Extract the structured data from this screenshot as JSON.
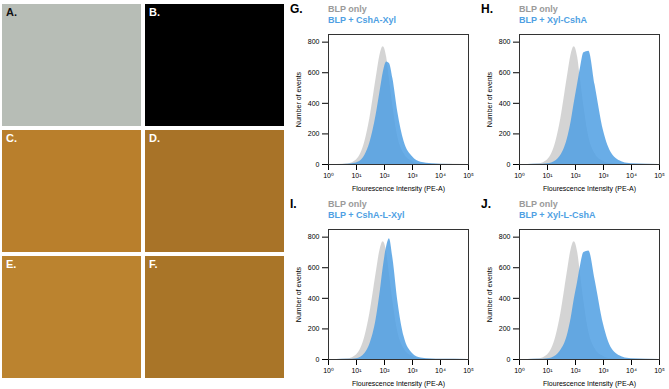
{
  "image_panels": [
    {
      "label": "A.",
      "color": "#b7bdb6"
    },
    {
      "label": "B.",
      "color": "#000000"
    },
    {
      "label": "C.",
      "color": "#b97f2c"
    },
    {
      "label": "D.",
      "color": "#a87328"
    },
    {
      "label": "E.",
      "color": "#bb832f"
    },
    {
      "label": "F.",
      "color": "#a97528"
    }
  ],
  "chart_data": [
    {
      "type": "area",
      "title": "G.",
      "x_label": "Flourescence Intensity (PE-A)",
      "y_label": "Number of events",
      "x": [
        2,
        5,
        10,
        20,
        30,
        50,
        70,
        90,
        120,
        150,
        200,
        300,
        500,
        1000,
        2000,
        5000,
        10000,
        100000
      ],
      "series": [
        {
          "name": "BLP only",
          "color": "#cfcfcf",
          "values": [
            0,
            5,
            30,
            150,
            300,
            560,
            720,
            770,
            700,
            560,
            380,
            180,
            70,
            20,
            5,
            2,
            1,
            0
          ]
        },
        {
          "name": "BLP + CshA-Xyl",
          "color": "#4f9fe3",
          "values": [
            0,
            2,
            10,
            60,
            140,
            320,
            480,
            600,
            670,
            660,
            560,
            340,
            150,
            50,
            15,
            5,
            2,
            0
          ]
        }
      ],
      "xlim": [
        1,
        100000
      ],
      "xticks": [
        {
          "value": 1,
          "label": "10⁰"
        },
        {
          "value": 10,
          "label": "10¹"
        },
        {
          "value": 100,
          "label": "10²"
        },
        {
          "value": 1000,
          "label": "10³"
        },
        {
          "value": 10000,
          "label": "10⁴"
        },
        {
          "value": 100000,
          "label": "10⁵"
        }
      ],
      "ylim": [
        0,
        850
      ],
      "yticks": [
        0,
        200,
        400,
        600,
        800
      ],
      "log": "x",
      "grid": false,
      "legend": "top-left"
    },
    {
      "type": "area",
      "title": "H.",
      "x_label": "Flourescence Intensity (PE-A)",
      "y_label": "Number of events",
      "x": [
        2,
        5,
        10,
        20,
        30,
        50,
        70,
        90,
        120,
        150,
        200,
        300,
        500,
        1000,
        2000,
        5000,
        10000,
        100000
      ],
      "series": [
        {
          "name": "BLP only",
          "color": "#cfcfcf",
          "values": [
            0,
            5,
            30,
            150,
            300,
            560,
            720,
            770,
            700,
            560,
            380,
            180,
            70,
            20,
            5,
            2,
            1,
            0
          ]
        },
        {
          "name": "BLP + Xyl-CshA",
          "color": "#4f9fe3",
          "values": [
            0,
            1,
            5,
            25,
            60,
            160,
            280,
            400,
            530,
            630,
            730,
            740,
            520,
            220,
            70,
            15,
            5,
            0
          ]
        }
      ],
      "xlim": [
        1,
        100000
      ],
      "xticks": [
        {
          "value": 1,
          "label": "10⁰"
        },
        {
          "value": 10,
          "label": "10¹"
        },
        {
          "value": 100,
          "label": "10²"
        },
        {
          "value": 1000,
          "label": "10³"
        },
        {
          "value": 10000,
          "label": "10⁴"
        },
        {
          "value": 100000,
          "label": "10⁵"
        }
      ],
      "ylim": [
        0,
        850
      ],
      "yticks": [
        0,
        200,
        400,
        600,
        800
      ],
      "log": "x",
      "grid": false,
      "legend": "top-left"
    },
    {
      "type": "area",
      "title": "I.",
      "x_label": "Flourescence Intensity (PE-A)",
      "y_label": "Number of events",
      "x": [
        2,
        5,
        10,
        20,
        30,
        50,
        70,
        90,
        120,
        150,
        200,
        300,
        500,
        1000,
        2000,
        5000,
        10000,
        100000
      ],
      "series": [
        {
          "name": "BLP only",
          "color": "#cfcfcf",
          "values": [
            0,
            5,
            30,
            150,
            300,
            560,
            720,
            770,
            700,
            560,
            380,
            180,
            70,
            20,
            5,
            2,
            1,
            0
          ]
        },
        {
          "name": "BLP + CshA-L-Xyl",
          "color": "#4f9fe3",
          "values": [
            0,
            1,
            5,
            40,
            100,
            260,
            440,
            600,
            740,
            790,
            660,
            380,
            150,
            40,
            10,
            3,
            1,
            0
          ]
        }
      ],
      "xlim": [
        1,
        100000
      ],
      "xticks": [
        {
          "value": 1,
          "label": "10⁰"
        },
        {
          "value": 10,
          "label": "10¹"
        },
        {
          "value": 100,
          "label": "10²"
        },
        {
          "value": 1000,
          "label": "10³"
        },
        {
          "value": 10000,
          "label": "10⁴"
        },
        {
          "value": 100000,
          "label": "10⁵"
        }
      ],
      "ylim": [
        0,
        850
      ],
      "yticks": [
        0,
        200,
        400,
        600,
        800
      ],
      "log": "x",
      "grid": false,
      "legend": "top-left"
    },
    {
      "type": "area",
      "title": "J.",
      "x_label": "Flourescence Intensity (PE-A)",
      "y_label": "Number of events",
      "x": [
        2,
        5,
        10,
        20,
        30,
        50,
        70,
        90,
        120,
        150,
        200,
        300,
        500,
        1000,
        2000,
        5000,
        10000,
        100000
      ],
      "series": [
        {
          "name": "BLP only",
          "color": "#cfcfcf",
          "values": [
            0,
            5,
            30,
            150,
            300,
            560,
            720,
            770,
            700,
            560,
            380,
            180,
            70,
            20,
            5,
            2,
            1,
            0
          ]
        },
        {
          "name": "BLP + Xyl-L-CshA",
          "color": "#4f9fe3",
          "values": [
            0,
            1,
            5,
            25,
            60,
            150,
            270,
            390,
            510,
            610,
            700,
            710,
            520,
            230,
            70,
            15,
            5,
            0
          ]
        }
      ],
      "xlim": [
        1,
        100000
      ],
      "xticks": [
        {
          "value": 1,
          "label": "10⁰"
        },
        {
          "value": 10,
          "label": "10¹"
        },
        {
          "value": 100,
          "label": "10²"
        },
        {
          "value": 1000,
          "label": "10³"
        },
        {
          "value": 10000,
          "label": "10⁴"
        },
        {
          "value": 100000,
          "label": "10⁵"
        }
      ],
      "ylim": [
        0,
        850
      ],
      "yticks": [
        0,
        200,
        400,
        600,
        800
      ],
      "log": "x",
      "grid": false,
      "legend": "top-left"
    }
  ]
}
